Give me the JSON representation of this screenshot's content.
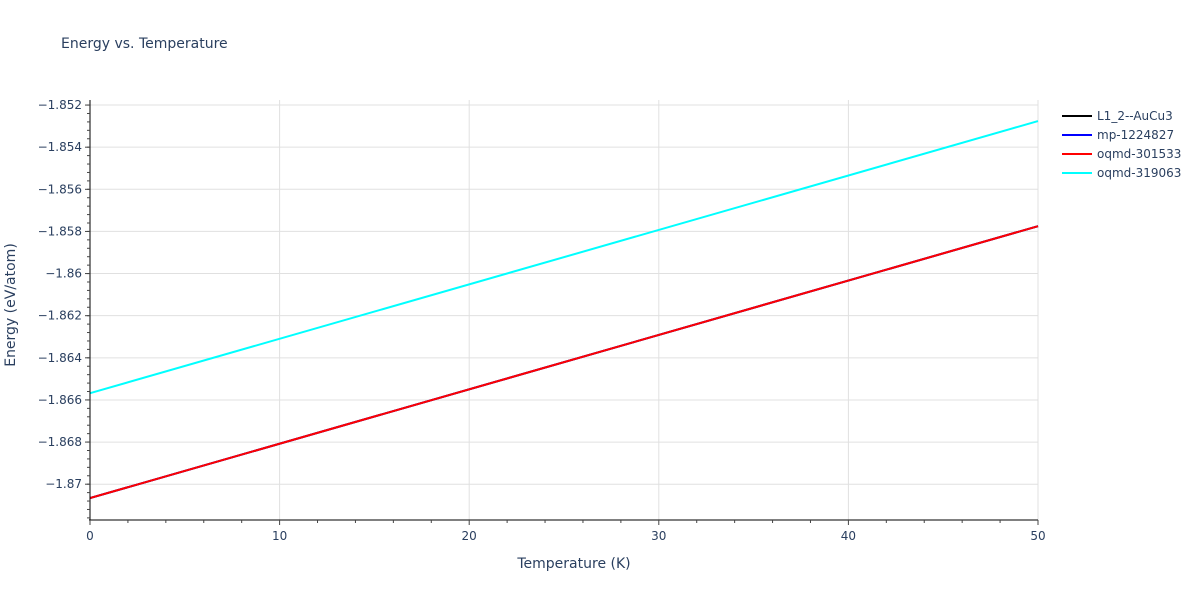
{
  "chart_data": {
    "type": "line",
    "title": "Energy vs. Temperature",
    "xlabel": "Temperature (K)",
    "ylabel": "Energy (eV/atom)",
    "xlim": [
      0,
      50
    ],
    "ylim": [
      -1.8717,
      -1.85176
    ],
    "x_ticks": [
      0,
      10,
      20,
      30,
      40,
      50
    ],
    "x_tick_labels": [
      "0",
      "10",
      "20",
      "30",
      "40",
      "50"
    ],
    "y_ticks": [
      -1.852,
      -1.854,
      -1.856,
      -1.858,
      -1.86,
      -1.862,
      -1.864,
      -1.866,
      -1.868,
      -1.87
    ],
    "y_tick_labels": [
      "−1.852",
      "−1.854",
      "−1.856",
      "−1.858",
      "−1.86",
      "−1.862",
      "−1.864",
      "−1.866",
      "−1.868",
      "−1.87"
    ],
    "grid": true,
    "legend_position": "right",
    "x": [
      0,
      50
    ],
    "series": [
      {
        "name": "L1_2--AuCu3",
        "color": "#000000",
        "values": [
          -1.87066,
          -1.85775
        ]
      },
      {
        "name": "mp-1224827",
        "color": "#0000ff",
        "values": [
          -1.87066,
          -1.85775
        ]
      },
      {
        "name": "oqmd-301533",
        "color": "#ff0000",
        "values": [
          -1.87066,
          -1.85775
        ]
      },
      {
        "name": "oqmd-319063",
        "color": "#00ffff",
        "values": [
          -1.86568,
          -1.85276
        ]
      }
    ]
  }
}
